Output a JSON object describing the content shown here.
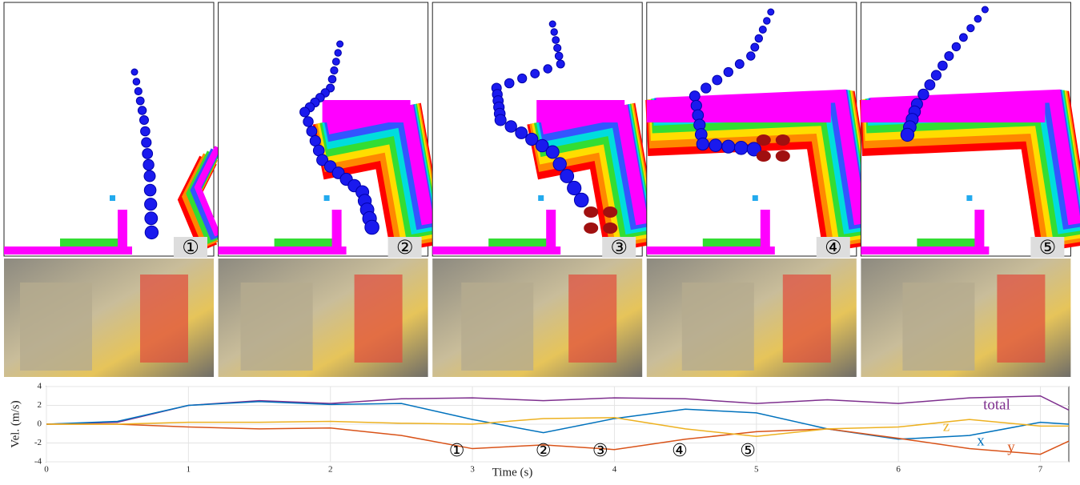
{
  "panels": [
    {
      "label": "①"
    },
    {
      "label": "②"
    },
    {
      "label": "③"
    },
    {
      "label": "④"
    },
    {
      "label": "⑤"
    }
  ],
  "chart_data": {
    "type": "line",
    "x_label": "Time (s)",
    "y_label": "Vel. (m/s)",
    "x": [
      0,
      0.5,
      1,
      1.5,
      2,
      2.5,
      3,
      3.5,
      4,
      4.5,
      5,
      5.5,
      6,
      6.5,
      7,
      7.2
    ],
    "series": [
      {
        "name": "total",
        "color": "#7e2f8e",
        "values": [
          0,
          0.2,
          2,
          2.5,
          2.2,
          2.7,
          2.8,
          2.5,
          2.8,
          2.7,
          2.2,
          2.6,
          2.2,
          2.8,
          3.0,
          1.5
        ]
      },
      {
        "name": "x",
        "color": "#0072bd",
        "values": [
          0,
          0.3,
          2,
          2.4,
          2.1,
          2.2,
          0.5,
          -0.9,
          0.6,
          1.6,
          1.2,
          -0.5,
          -1.6,
          -1.2,
          0.2,
          0
        ]
      },
      {
        "name": "y",
        "color": "#d95319",
        "values": [
          0,
          0,
          -0.3,
          -0.5,
          -0.4,
          -1.2,
          -2.6,
          -2.2,
          -2.7,
          -1.6,
          -0.8,
          -0.5,
          -1.5,
          -2.6,
          -3.2,
          -1.8
        ]
      },
      {
        "name": "z",
        "color": "#edb120",
        "values": [
          0,
          0,
          0.2,
          0.2,
          0.3,
          0.1,
          0,
          0.6,
          0.7,
          -0.5,
          -1.3,
          -0.5,
          -0.3,
          0.5,
          -0.2,
          -0.2
        ]
      }
    ],
    "annotations": [
      {
        "text": "①",
        "x": 2.89,
        "y": -2.9
      },
      {
        "text": "②",
        "x": 3.5,
        "y": -2.9
      },
      {
        "text": "③",
        "x": 3.9,
        "y": -2.9
      },
      {
        "text": "④",
        "x": 4.46,
        "y": -2.9
      },
      {
        "text": "⑤",
        "x": 4.94,
        "y": -2.9
      }
    ],
    "xlim": [
      0,
      7.2
    ],
    "ylim": [
      -4,
      4
    ],
    "xticks": [
      0,
      1,
      2,
      3,
      4,
      5,
      6,
      7
    ],
    "yticks": [
      -4,
      -2,
      0,
      2,
      4
    ],
    "grid": true
  }
}
